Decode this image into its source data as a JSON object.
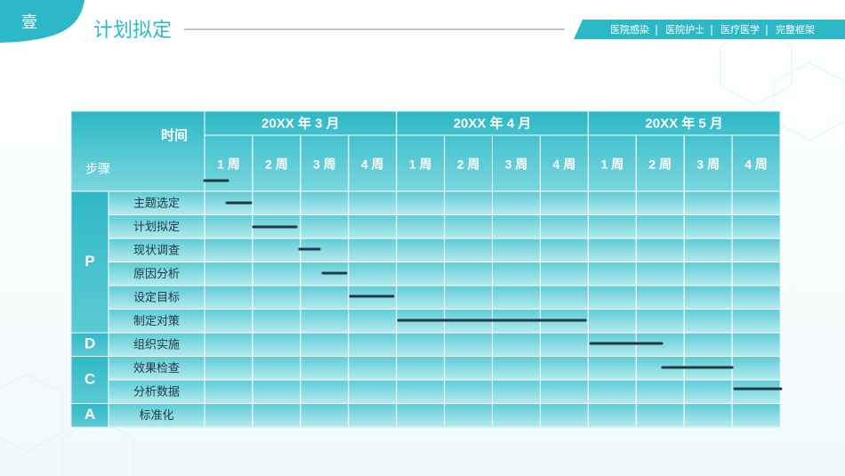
{
  "header": {
    "badge": "壹",
    "title": "计划拟定",
    "tags": [
      "医院感染",
      "医院护士",
      "医疗医学",
      "完整框架"
    ]
  },
  "table": {
    "corner_top": "时间",
    "corner_bottom": "步骤",
    "months": [
      "20XX 年 3 月",
      "20XX 年 4 月",
      "20XX 年 5 月"
    ],
    "weeks": [
      "1 周",
      "2 周",
      "3 周",
      "4 周",
      "1 周",
      "2 周",
      "3 周",
      "4 周",
      "1 周",
      "2 周",
      "3 周",
      "4 周"
    ],
    "phases": [
      {
        "label": "P",
        "tasks": [
          "主题选定",
          "计划拟定",
          "现状调查",
          "原因分析",
          "设定目标",
          "制定对策"
        ]
      },
      {
        "label": "D",
        "tasks": [
          "组织实施"
        ]
      },
      {
        "label": "C",
        "tasks": [
          "效果检查",
          "分析数据"
        ]
      },
      {
        "label": "A",
        "tasks": [
          "标准化"
        ]
      }
    ]
  }
}
